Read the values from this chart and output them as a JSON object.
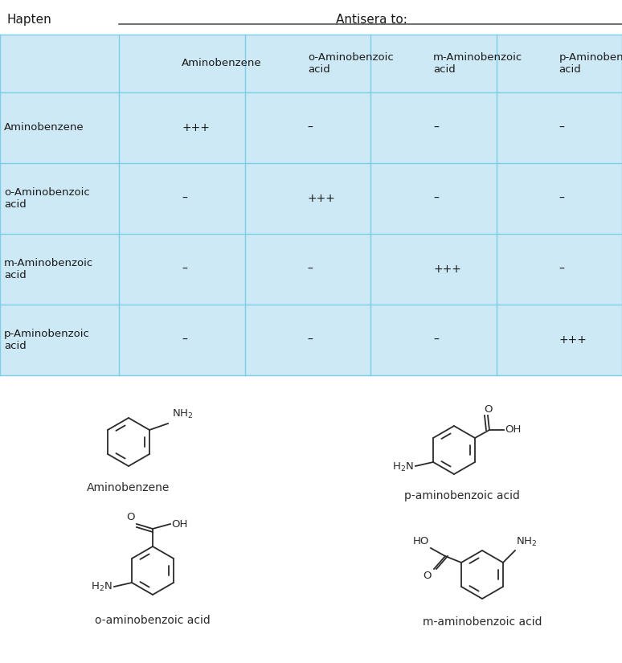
{
  "title_hapten": "Hapten",
  "title_antisera": "Antisera to:",
  "col_headers": [
    "Aminobenzene",
    "o-Aminobenzoic\nacid",
    "m-Aminobenzoic\nacid",
    "p-Aminobenzoic\nacid"
  ],
  "row_headers": [
    "Aminobenzene",
    "o-Aminobenzoic\nacid",
    "m-Aminobenzoic\nacid",
    "p-Aminobenzoic\nacid"
  ],
  "table_data": [
    [
      "+++",
      "–",
      "–",
      "–"
    ],
    [
      "–",
      "+++",
      "–",
      "–"
    ],
    [
      "–",
      "–",
      "+++",
      "–"
    ],
    [
      "–",
      "–",
      "–",
      "+++"
    ]
  ],
  "bg_color": "#cce9f5",
  "line_color": "#7ecbea",
  "white": "#ffffff",
  "text_color": "#1a1a1a",
  "structure_labels": [
    "Aminobenzene",
    "p-aminobenzoic acid",
    "o-aminobenzoic acid",
    "m-aminobenzoic acid"
  ]
}
